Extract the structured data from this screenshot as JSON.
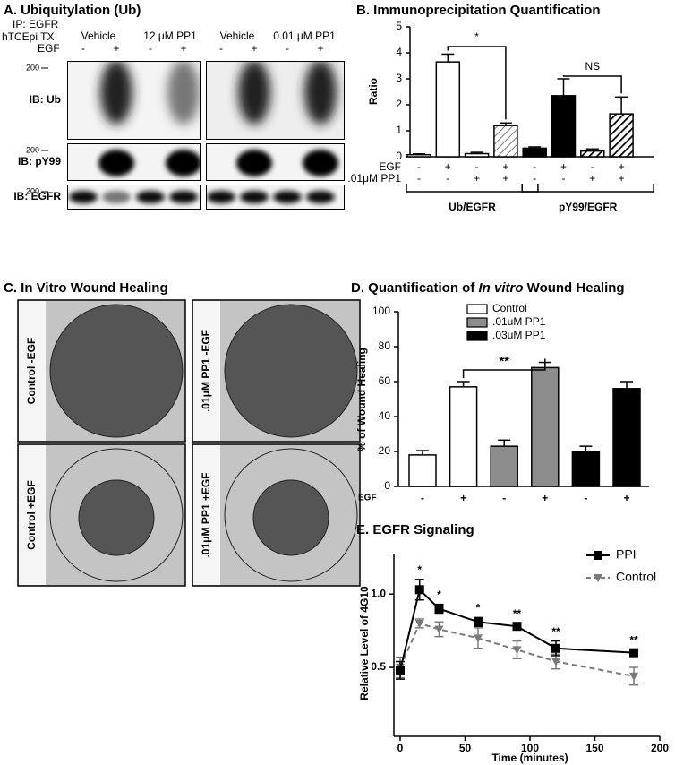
{
  "panel_a": {
    "title": "A. Ubiquitylation (Ub)",
    "ip": "IP: EGFR",
    "treatment": "hTCEpi TX",
    "egf": "EGF",
    "groups": [
      "Vehicle",
      "12 μM PP1",
      "Vehicle",
      "0.01 μM PP1"
    ],
    "egf_signs": [
      "-",
      "+",
      "-",
      "+",
      "-",
      "+",
      "-",
      "+"
    ],
    "marker": "200",
    "rows": [
      "IB: Ub",
      "IB: pY99",
      "IB: EGFR"
    ]
  },
  "panel_c": {
    "title": "C. In Vitro Wound Healing",
    "images": [
      "Control -EGF",
      ".01μM PP1 -EGF",
      "Control +EGF",
      ".01μM PP1 +EGF"
    ]
  },
  "chart_data": [
    {
      "type": "bar",
      "title": "B. Immunoprecipitation Quantification",
      "ylabel": "Ratio",
      "values": [
        0.08,
        3.65,
        0.12,
        1.2,
        0.33,
        2.35,
        0.22,
        1.65
      ],
      "errors": [
        0.03,
        0.3,
        0.05,
        0.1,
        0.05,
        0.65,
        0.08,
        0.65
      ],
      "bar_styles": [
        "white",
        "white",
        "white",
        "hatch-light",
        "black",
        "black",
        "hatch-dark",
        "hatch-dark"
      ],
      "rows": [
        {
          "label": "EGF",
          "signs": [
            "-",
            "+",
            "-",
            "+",
            "-",
            "+",
            "-",
            "+"
          ]
        },
        {
          "label": ".01μM PP1",
          "signs": [
            "-",
            "-",
            "+",
            "+",
            "-",
            "-",
            "+",
            "+"
          ]
        }
      ],
      "groups": [
        "Ub/EGFR",
        "pY99/EGFR"
      ],
      "significance": [
        "*",
        "NS"
      ],
      "ylim": [
        0,
        5
      ],
      "yticks": [
        0,
        1,
        2,
        3,
        4,
        5
      ]
    },
    {
      "type": "bar",
      "title": [
        "D. Quantification of ",
        "In vitro",
        " Wound Healing"
      ],
      "ylabel": "% of Wound Healing",
      "series": [
        {
          "name": "Control",
          "color": "#ffffff",
          "values": [
            18,
            57
          ],
          "errors": [
            2.5,
            3
          ]
        },
        {
          "name": ".01uM PP1",
          "color": "#8c8c8c",
          "values": [
            23,
            68
          ],
          "errors": [
            3.5,
            3
          ]
        },
        {
          "name": ".03uM PP1",
          "color": "#000000",
          "values": [
            20,
            56
          ],
          "errors": [
            3,
            4
          ]
        }
      ],
      "row": {
        "label": "EGF",
        "signs": [
          "-",
          "+",
          "-",
          "+",
          "-",
          "+"
        ]
      },
      "significance": "**",
      "ylim": [
        0,
        100
      ],
      "yticks": [
        0,
        20,
        40,
        60,
        80,
        100
      ]
    },
    {
      "type": "line",
      "title": "E. EGFR Signaling",
      "xlabel": "Time (minutes)",
      "ylabel": "Relative Level of 4G10",
      "x": [
        0,
        15,
        30,
        60,
        90,
        120,
        180
      ],
      "series": [
        {
          "name": "PPI",
          "color": "#000000",
          "marker": "square",
          "dashed": false,
          "values": [
            0.48,
            1.03,
            0.9,
            0.81,
            0.78,
            0.63,
            0.6
          ],
          "errors": [
            0.06,
            0.07,
            0.03,
            0.03,
            0.02,
            0.05,
            0.02
          ]
        },
        {
          "name": "Control",
          "color": "#7a7a7a",
          "marker": "triangle-down",
          "dashed": true,
          "values": [
            0.5,
            0.8,
            0.76,
            0.7,
            0.62,
            0.54,
            0.44
          ],
          "errors": [
            0.07,
            0.03,
            0.05,
            0.07,
            0.06,
            0.05,
            0.06
          ]
        }
      ],
      "annotations": [
        {
          "x": 15,
          "label": "*"
        },
        {
          "x": 30,
          "label": "*"
        },
        {
          "x": 60,
          "label": "*"
        },
        {
          "x": 90,
          "label": "**"
        },
        {
          "x": 120,
          "label": "**"
        },
        {
          "x": 180,
          "label": "**"
        }
      ],
      "xlim": [
        0,
        200
      ],
      "xticks": [
        0,
        50,
        100,
        150,
        200
      ],
      "ylim": [
        0.03,
        1.27
      ],
      "yticks": [
        {
          "value": 0.5,
          "label": "0.5"
        },
        {
          "value": 1,
          "label": "1.0"
        }
      ]
    }
  ]
}
